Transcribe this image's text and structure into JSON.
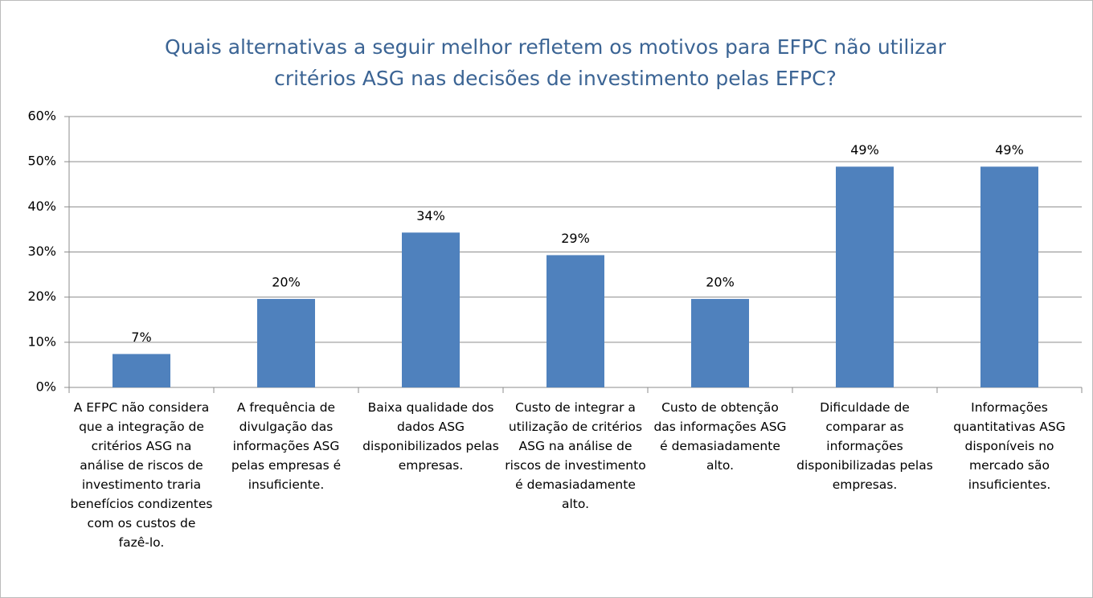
{
  "chart_data": {
    "type": "bar",
    "title": "Quais alternativas a seguir melhor refletem os motivos para EFPC não utilizar critérios ASG nas decisões de investimento pelas EFPC?",
    "categories": [
      "A EFPC não considera que a integração de critérios ASG na análise de riscos de investimento traria benefícios condizentes com os custos de fazê-lo.",
      "A frequência de divulgação das informações ASG pelas empresas é insuficiente.",
      "Baixa qualidade dos dados ASG disponibilizados pelas empresas.",
      "Custo de integrar a utilização de critérios ASG na análise de riscos de investimento é demasiadamente alto.",
      "Custo de obtenção das informações ASG é demasiadamente alto.",
      "Dificuldade de comparar as informações disponibilizadas pelas empresas.",
      "Informações quantitativas ASG disponíveis no mercado são insuficientes."
    ],
    "values": [
      7.4,
      19.6,
      34.3,
      29.3,
      19.6,
      48.9,
      48.9
    ],
    "value_labels": [
      "7%",
      "20%",
      "34%",
      "29%",
      "20%",
      "49%",
      "49%"
    ],
    "color": "#4f81bd",
    "ylim": [
      0,
      60
    ],
    "yticks": [
      {
        "value": 0,
        "label": "0%"
      },
      {
        "value": 10,
        "label": "10%"
      },
      {
        "value": 20,
        "label": "20%"
      },
      {
        "value": 30,
        "label": "30%"
      },
      {
        "value": 40,
        "label": "40%"
      },
      {
        "value": 50,
        "label": "50%"
      },
      {
        "value": 60,
        "label": "60%"
      }
    ],
    "grid": true
  }
}
